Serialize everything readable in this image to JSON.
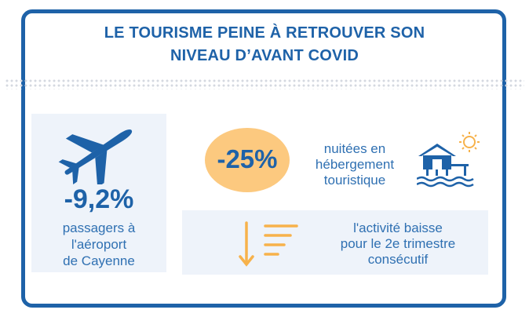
{
  "title": {
    "line1": "LE TOURISME PEINE À RETROUVER SON",
    "line2": "NIVEAU D’AVANT COVID"
  },
  "airport": {
    "icon": "airplane-icon",
    "value": "-9,2%",
    "label_lines": [
      "passagers à",
      "l'aéroport",
      "de Cayenne"
    ]
  },
  "lodging": {
    "value": "-25%",
    "label_lines": [
      "nuitées en",
      "hébergement",
      "touristique"
    ],
    "icon": "stilt-house-sun-icon"
  },
  "activity": {
    "icon": "down-arrow-list-icon",
    "label_lines": [
      "l'activité baisse",
      "pour le 2e trimestre",
      "consécutif"
    ]
  },
  "colors": {
    "primary_blue": "#1e62a8",
    "text_blue": "#2f70b2",
    "panel_bg": "#eef3fa",
    "orange": "#fcc97f",
    "arrow_orange": "#f7b24b"
  }
}
